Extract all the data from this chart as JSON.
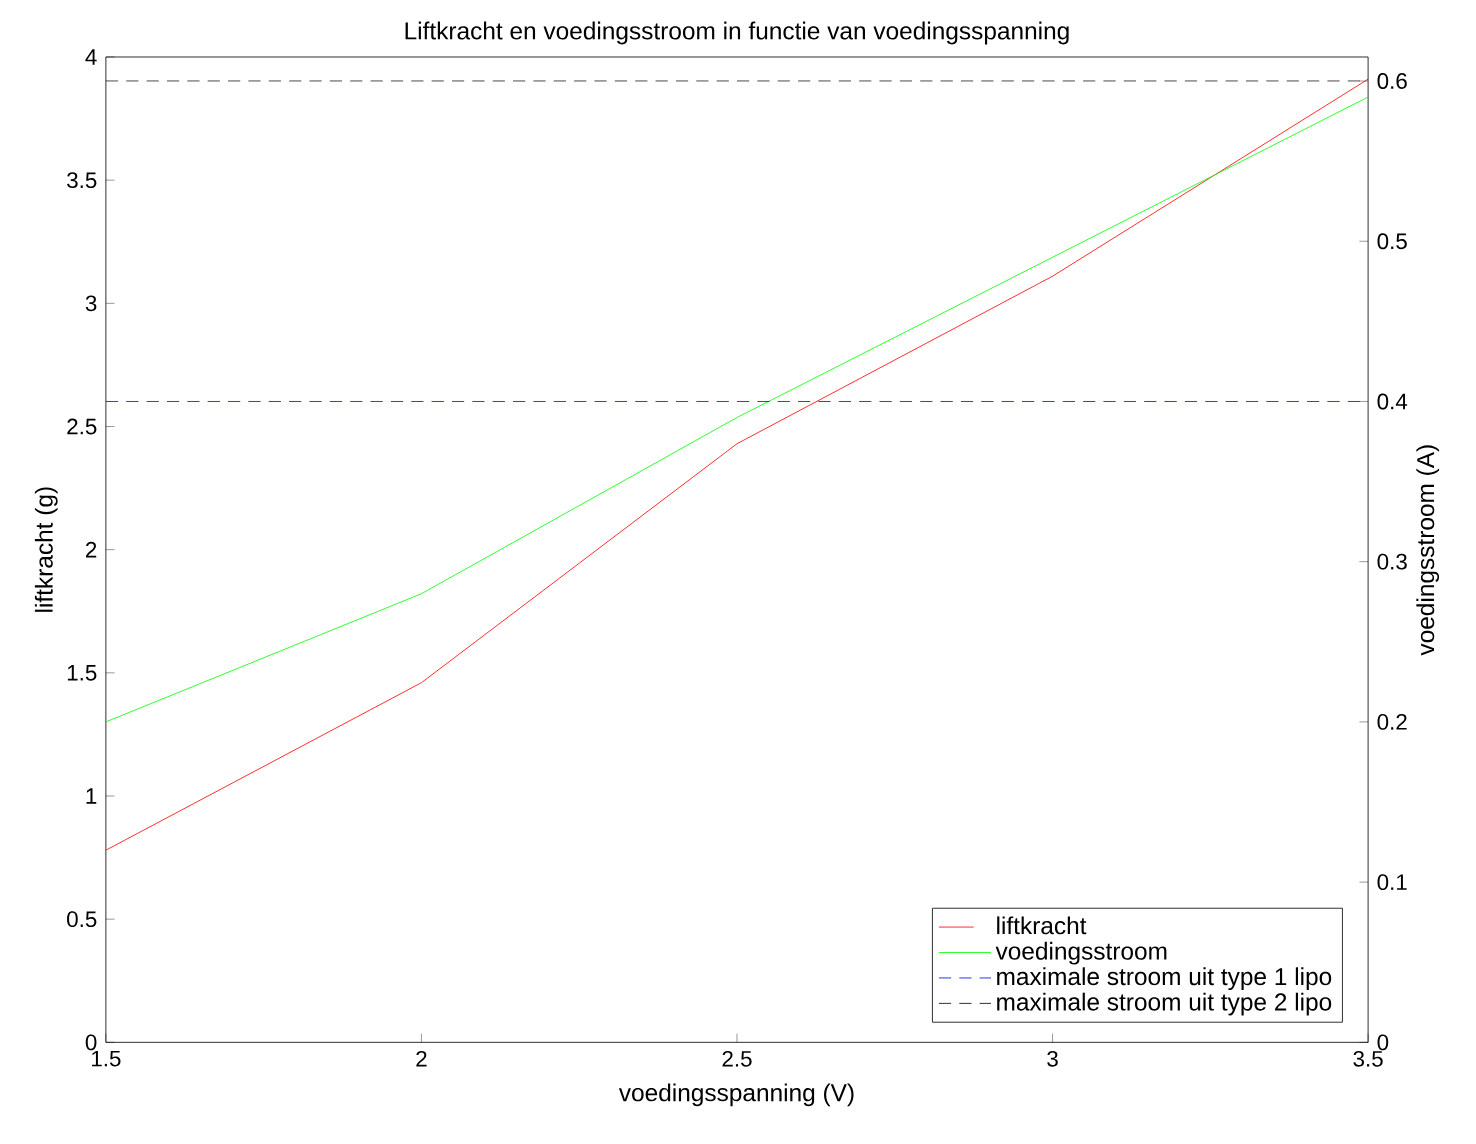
{
  "chart_data": {
    "type": "line",
    "title": "Liftkracht en voedingsstroom in functie van voedingsspanning",
    "xlabel": "voedingsspanning (V)",
    "ylabel": "liftkracht (g)",
    "y2label": "voedingsstroom (A)",
    "x": [
      1.5,
      2,
      2.5,
      3,
      3.5
    ],
    "series": [
      {
        "name": "liftkracht",
        "color": "#ff0000",
        "values": [
          0.78,
          1.46,
          2.43,
          3.11,
          3.91
        ]
      },
      {
        "name": "voedingsstroom",
        "color": "#00ff00",
        "axis": "y2",
        "values": [
          0.2,
          0.28,
          0.39,
          0.49,
          0.59
        ]
      }
    ],
    "ref_lines": [
      {
        "axis": "y2",
        "value": 0.4,
        "label": "maximale stroom uit type 1 lipo",
        "color": "#0000ff",
        "line_style": "dashed"
      },
      {
        "axis": "y2",
        "value": 0.6,
        "label": "maximale stroom uit type 2 lipo",
        "color": "#000000",
        "line_style": "dashed"
      }
    ],
    "xlim": [
      1.5,
      3.5
    ],
    "xticks": [
      1.5,
      2,
      2.5,
      3,
      3.5
    ],
    "ylim": [
      0,
      4
    ],
    "yticks": [
      0,
      0.5,
      1,
      1.5,
      2,
      2.5,
      3,
      3.5,
      4
    ],
    "y2lim": [
      0,
      0.615
    ],
    "y2ticks": [
      0,
      0.1,
      0.2,
      0.3,
      0.4,
      0.5,
      0.6
    ],
    "grid": false,
    "legend": "bottom right",
    "marker": "none",
    "line_style": "solid"
  }
}
